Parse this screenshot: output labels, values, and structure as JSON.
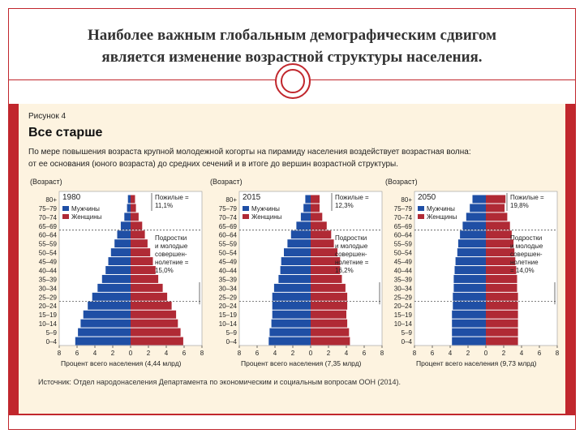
{
  "slide": {
    "title_line1": "Наиболее важным глобальным демографическим сдвигом",
    "title_line2": "является изменение возрастной структуры населения."
  },
  "figure": {
    "label": "Рисунок 4",
    "title": "Все старше",
    "desc_line1": "По мере повышения возраста крупной молодежной когорты на пирамиду населения воздействует возрастная волна:",
    "desc_line2": "от ее основания (юного возраста) до средних сечений и в итоге до вершин возрастной структуры.",
    "source": "Источник: Отдел народонаселения Департамента по экономическим и социальным вопросам ООН (2014)."
  },
  "colors": {
    "male": "#1f4fa5",
    "female": "#b02a35",
    "accent": "#c1272d"
  },
  "chart_data": [
    {
      "type": "bar",
      "orientation": "population-pyramid",
      "year": "1980",
      "ylabel": "(Возраст)",
      "xlabel": "Процент всего населения (4,44 млрд)",
      "xticks": [
        "8",
        "6",
        "4",
        "2",
        "0",
        "2",
        "4",
        "6",
        "8"
      ],
      "xlim": [
        -8,
        8
      ],
      "categories": [
        "0–4",
        "5–9",
        "10–14",
        "15–19",
        "20–24",
        "25–29",
        "30–34",
        "35–39",
        "40–44",
        "45–49",
        "50–54",
        "55–59",
        "60–64",
        "65–69",
        "70–74",
        "75–79",
        "80+"
      ],
      "series": [
        {
          "name": "Мужчины",
          "values": [
            6.2,
            5.9,
            5.6,
            5.3,
            4.8,
            4.3,
            3.7,
            3.2,
            2.8,
            2.5,
            2.2,
            1.8,
            1.5,
            1.1,
            0.7,
            0.4,
            0.3
          ]
        },
        {
          "name": "Женщины",
          "values": [
            5.9,
            5.6,
            5.3,
            5.1,
            4.6,
            4.1,
            3.6,
            3.1,
            2.8,
            2.5,
            2.2,
            1.9,
            1.6,
            1.3,
            0.9,
            0.6,
            0.5
          ]
        }
      ],
      "legend": [
        "Мужчины",
        "Женщины"
      ],
      "annotations": {
        "elderly": [
          "Пожилые =",
          "11,1%"
        ],
        "youth": [
          "Подростки",
          "и молодые",
          "совершен-",
          "нолетние =",
          "15,0%"
        ]
      }
    },
    {
      "type": "bar",
      "orientation": "population-pyramid",
      "year": "2015",
      "ylabel": "(Возраст)",
      "xlabel": "Процент всего населения (7,35 млрд)",
      "xticks": [
        "8",
        "6",
        "4",
        "2",
        "0",
        "2",
        "4",
        "6",
        "8"
      ],
      "xlim": [
        -8,
        8
      ],
      "categories": [
        "0–4",
        "5–9",
        "10–14",
        "15–19",
        "20–24",
        "25–29",
        "30–34",
        "35–39",
        "40–44",
        "45–49",
        "50–54",
        "55–59",
        "60–64",
        "65–69",
        "70–74",
        "75–79",
        "80+"
      ],
      "series": [
        {
          "name": "Мужчины",
          "values": [
            4.7,
            4.6,
            4.4,
            4.3,
            4.3,
            4.3,
            4.1,
            3.6,
            3.4,
            3.3,
            3.0,
            2.6,
            2.2,
            1.6,
            1.1,
            0.8,
            0.6
          ]
        },
        {
          "name": "Женщины",
          "values": [
            4.4,
            4.3,
            4.1,
            4.0,
            4.1,
            4.1,
            3.9,
            3.5,
            3.3,
            3.3,
            3.0,
            2.6,
            2.3,
            1.8,
            1.3,
            1.0,
            1.0
          ]
        }
      ],
      "legend": [
        "Мужчины",
        "Женщины"
      ],
      "annotations": {
        "elderly": [
          "Пожилые =",
          "12,3%"
        ],
        "youth": [
          "Подростки",
          "и молодые",
          "совершен-",
          "нолетние =",
          "16,2%"
        ]
      }
    },
    {
      "type": "bar",
      "orientation": "population-pyramid",
      "year": "2050",
      "ylabel": "(Возраст)",
      "xlabel": "Процент всего населения (9,73 млрд)",
      "xticks": [
        "8",
        "6",
        "4",
        "2",
        "0",
        "2",
        "4",
        "6",
        "8"
      ],
      "xlim": [
        -8,
        8
      ],
      "categories": [
        "0–4",
        "5–9",
        "10–14",
        "15–19",
        "20–24",
        "25–29",
        "30–34",
        "35–39",
        "40–44",
        "45–49",
        "50–54",
        "55–59",
        "60–64",
        "65–69",
        "70–74",
        "75–79",
        "80+"
      ],
      "series": [
        {
          "name": "Мужчины",
          "values": [
            3.8,
            3.8,
            3.8,
            3.8,
            3.7,
            3.7,
            3.6,
            3.6,
            3.5,
            3.4,
            3.2,
            3.1,
            2.9,
            2.6,
            2.2,
            1.8,
            1.5
          ]
        },
        {
          "name": "Женщины",
          "values": [
            3.6,
            3.6,
            3.6,
            3.6,
            3.6,
            3.6,
            3.5,
            3.5,
            3.4,
            3.3,
            3.2,
            3.1,
            2.9,
            2.7,
            2.4,
            2.1,
            2.2
          ]
        }
      ],
      "legend": [
        "Мужчины",
        "Женщины"
      ],
      "annotations": {
        "elderly": [
          "Пожилые =",
          "19,8%"
        ],
        "youth": [
          "Подростки",
          "и молодые",
          "совершен-",
          "нолетние",
          "= 14,0%"
        ]
      }
    }
  ]
}
